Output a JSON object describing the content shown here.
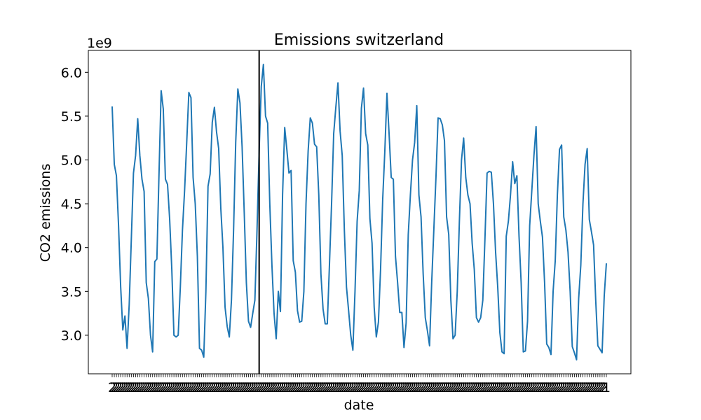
{
  "chart_data": {
    "type": "line",
    "title": "Emissions switzerland",
    "xlabel": "date",
    "ylabel": "CO2 emissions",
    "y_multiplier_label": "1e9",
    "ylim": [
      2.56,
      6.25
    ],
    "yticks": [
      3.0,
      3.5,
      4.0,
      4.5,
      5.0,
      5.5,
      6.0
    ],
    "ytick_labels": [
      "3.0",
      "3.5",
      "4.0",
      "4.5",
      "5.0",
      "5.5",
      "6.0"
    ],
    "x_tick_text": "2",
    "x_tick_text_last": "1",
    "grid": false,
    "series_color": "#1f77b4",
    "vline_color": "#000000",
    "vline_index": 69,
    "series": [
      {
        "values": [
          5.61,
          4.95,
          4.82,
          4.25,
          3.55,
          3.06,
          3.22,
          2.85,
          3.35,
          4.1,
          4.85,
          5.05,
          5.47,
          5.05,
          4.78,
          4.64,
          3.6,
          3.42,
          3.0,
          2.81,
          3.84,
          3.87,
          4.85,
          5.79,
          5.58,
          4.78,
          4.72,
          4.32,
          3.75,
          3.0,
          2.98,
          3.0,
          3.55,
          4.2,
          4.65,
          5.2,
          5.77,
          5.71,
          4.8,
          4.5,
          3.9,
          2.85,
          2.83,
          2.75,
          3.5,
          4.7,
          4.84,
          5.43,
          5.6,
          5.32,
          5.13,
          4.45,
          4.0,
          3.32,
          3.1,
          2.98,
          3.4,
          4.2,
          5.2,
          5.81,
          5.65,
          5.15,
          4.4,
          3.6,
          3.16,
          3.09,
          3.25,
          3.4,
          4.2,
          5.1,
          5.84,
          6.09,
          5.5,
          5.42,
          4.5,
          3.8,
          3.25,
          2.96,
          3.5,
          3.27,
          4.6,
          5.37,
          5.12,
          4.85,
          4.88,
          3.85,
          3.72,
          3.28,
          3.15,
          3.16,
          3.5,
          4.5,
          5.1,
          5.48,
          5.42,
          5.18,
          5.15,
          4.6,
          3.7,
          3.3,
          3.13,
          3.13,
          3.8,
          4.5,
          5.3,
          5.6,
          5.88,
          5.33,
          5.05,
          4.2,
          3.55,
          3.28,
          3.0,
          2.83,
          3.5,
          4.3,
          4.65,
          5.59,
          5.82,
          5.3,
          5.17,
          4.33,
          4.05,
          3.32,
          2.98,
          3.15,
          3.75,
          4.55,
          5.1,
          5.76,
          5.3,
          4.8,
          4.78,
          3.9,
          3.6,
          3.26,
          3.26,
          2.86,
          3.14,
          4.15,
          4.6,
          5.0,
          5.2,
          5.62,
          4.6,
          4.35,
          3.7,
          3.2,
          3.05,
          2.88,
          3.6,
          4.2,
          4.8,
          5.48,
          5.47,
          5.4,
          5.22,
          4.35,
          4.15,
          3.4,
          2.96,
          3.0,
          3.5,
          4.3,
          5.0,
          5.25,
          4.8,
          4.6,
          4.5,
          4.05,
          3.75,
          3.2,
          3.15,
          3.2,
          3.4,
          4.1,
          4.85,
          4.87,
          4.86,
          4.5,
          3.95,
          3.55,
          3.03,
          2.81,
          2.79,
          4.13,
          4.3,
          4.6,
          4.98,
          4.73,
          4.82,
          4.13,
          3.6,
          2.81,
          2.82,
          3.16,
          4.25,
          4.65,
          5.05,
          5.38,
          4.5,
          4.3,
          4.12,
          3.6,
          2.9,
          2.86,
          2.78,
          3.5,
          3.85,
          4.6,
          5.12,
          5.17,
          4.35,
          4.2,
          3.95,
          3.5,
          2.87,
          2.8,
          2.72,
          3.42,
          3.8,
          4.5,
          4.95,
          5.13,
          4.32,
          4.18,
          4.03,
          3.4,
          2.88,
          2.84,
          2.8,
          3.45,
          3.82
        ]
      }
    ]
  }
}
